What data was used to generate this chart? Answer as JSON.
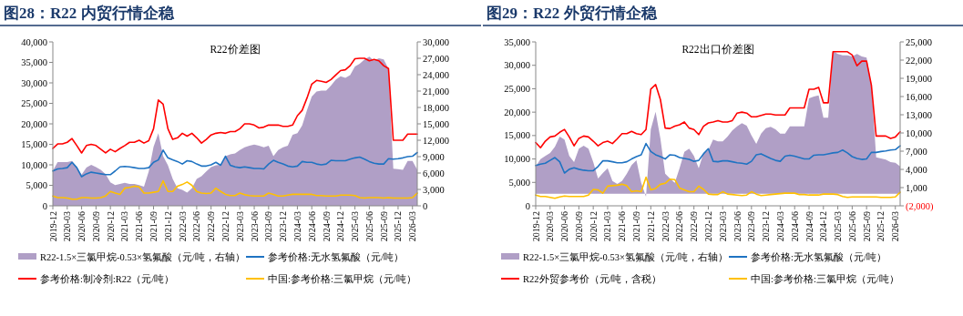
{
  "chart_data": [
    {
      "type": "line",
      "title": "图28：R22 内贸行情企稳",
      "subtitle": "R22价差图",
      "legend": "bottom",
      "xlim": [
        "2019-12",
        "2026-04"
      ],
      "xticks": [
        "2019-12",
        "2020-03",
        "2020-06",
        "2020-09",
        "2020-12",
        "2021-03",
        "2021-06",
        "2021-09",
        "2021-12",
        "2022-03",
        "2022-06",
        "2022-09",
        "2022-12",
        "2023-03",
        "2023-06",
        "2023-09",
        "2023-12",
        "2024-03",
        "2024-06",
        "2024-09",
        "2024-12",
        "2025-03",
        "2025-06",
        "2025-09",
        "2025-12",
        "2026-03"
      ],
      "ylim": [
        0,
        40000
      ],
      "yticks": [
        0,
        {
          "value": 5000,
          "label": "5,000"
        },
        {
          "value": 10000,
          "label": "10,000"
        },
        {
          "value": 15000,
          "label": "15,000"
        },
        {
          "value": 20000,
          "label": "20,000"
        },
        {
          "value": 25000,
          "label": "25,000"
        },
        {
          "value": 30000,
          "label": "30,000"
        },
        {
          "value": 35000,
          "label": "35,000"
        },
        {
          "value": 40000,
          "label": "40,000"
        }
      ],
      "y2lim": [
        0,
        30000
      ],
      "y2ticks": [
        0,
        {
          "value": 3000,
          "label": "3,000"
        },
        {
          "value": 6000,
          "label": "6,000"
        },
        {
          "value": 9000,
          "label": "9,000"
        },
        {
          "value": 12000,
          "label": "12,000"
        },
        {
          "value": 15000,
          "label": "15,000"
        },
        {
          "value": 18000,
          "label": "18,000"
        },
        {
          "value": 21000,
          "label": "21,000"
        },
        {
          "value": 24000,
          "label": "24,000"
        },
        {
          "value": 27000,
          "label": "27,000"
        },
        {
          "value": 30000,
          "label": "30,000"
        }
      ],
      "x": [
        "2019-12",
        "2020-01",
        "2020-02",
        "2020-03",
        "2020-04",
        "2020-05",
        "2020-06",
        "2020-07",
        "2020-08",
        "2020-09",
        "2020-10",
        "2020-11",
        "2020-12",
        "2021-01",
        "2021-02",
        "2021-03",
        "2021-04",
        "2021-05",
        "2021-06",
        "2021-07",
        "2021-08",
        "2021-09",
        "2021-10",
        "2021-11",
        "2021-12",
        "2022-01",
        "2022-02",
        "2022-03",
        "2022-04",
        "2022-05",
        "2022-06",
        "2022-07",
        "2022-08",
        "2022-09",
        "2022-10",
        "2022-11",
        "2022-12",
        "2023-01",
        "2023-02",
        "2023-03",
        "2023-04",
        "2023-05",
        "2023-06",
        "2023-07",
        "2023-08",
        "2023-09",
        "2023-10",
        "2023-11",
        "2023-12",
        "2024-01",
        "2024-02",
        "2024-03",
        "2024-04",
        "2024-05",
        "2024-06",
        "2024-07",
        "2024-08",
        "2024-09",
        "2024-10",
        "2024-11",
        "2024-12",
        "2025-01",
        "2025-02",
        "2025-03",
        "2025-04",
        "2025-05",
        "2025-06",
        "2025-07",
        "2025-08",
        "2025-09",
        "2025-10",
        "2025-11",
        "2025-12",
        "2026-01",
        "2026-02",
        "2026-03",
        "2026-04"
      ],
      "series": [
        {
          "name": "R22-1.5×三氯甲烷-0.53×氢氟酸（元/吨，右轴）",
          "type": "area",
          "axis": "y2",
          "color": "#b09fc6",
          "values": [
            6400,
            8000,
            8000,
            8000,
            8200,
            7100,
            5700,
            7000,
            7500,
            7100,
            6600,
            5800,
            4300,
            3800,
            4000,
            4200,
            4000,
            4000,
            3800,
            3500,
            6300,
            10800,
            13300,
            9100,
            7400,
            4900,
            3200,
            2900,
            2400,
            3200,
            4900,
            5400,
            6300,
            7100,
            7400,
            7500,
            9100,
            9400,
            9600,
            10200,
            10700,
            11000,
            11200,
            11000,
            10700,
            11000,
            9100,
            10200,
            10700,
            11000,
            13000,
            13300,
            14700,
            17500,
            20000,
            20900,
            21100,
            21100,
            22000,
            23100,
            23700,
            23400,
            23900,
            25500,
            26000,
            26800,
            27300,
            26600,
            27000,
            26800,
            25100,
            6800,
            6700,
            6600,
            8200,
            8200,
            6600
          ]
        },
        {
          "name": "参考价格:无水氢氟酸（元/吨）",
          "type": "line",
          "color": "#1f73c2",
          "values": [
            8500,
            9000,
            9100,
            9300,
            10600,
            9300,
            7100,
            7800,
            8200,
            8000,
            7800,
            7600,
            7600,
            8500,
            9500,
            9600,
            9500,
            9300,
            9100,
            9100,
            9300,
            10600,
            11200,
            13600,
            11700,
            11200,
            10800,
            10200,
            11000,
            10800,
            10200,
            9700,
            9700,
            10000,
            10600,
            9900,
            12100,
            9900,
            9500,
            9300,
            9500,
            9300,
            9100,
            9100,
            9000,
            10200,
            11100,
            10600,
            10200,
            9700,
            9500,
            9700,
            10800,
            10600,
            10600,
            10200,
            10000,
            10200,
            11100,
            11000,
            11000,
            11000,
            11400,
            11700,
            11900,
            11400,
            10800,
            10400,
            10200,
            10200,
            11500,
            11400,
            11500,
            11700,
            12000,
            12100,
            13000
          ]
        },
        {
          "name": "参考价格:制冷剂:R22（元/吨）",
          "type": "line",
          "color": "#ff0000",
          "values": [
            14000,
            15100,
            15100,
            15500,
            16400,
            14700,
            12900,
            14700,
            15000,
            14700,
            13800,
            12900,
            13800,
            13200,
            14000,
            14700,
            15500,
            15500,
            16000,
            15300,
            15900,
            18800,
            25800,
            24800,
            18800,
            16200,
            16600,
            17700,
            17000,
            17700,
            16600,
            15300,
            16200,
            17300,
            17700,
            17900,
            17700,
            18100,
            18100,
            18800,
            20000,
            20000,
            19700,
            19000,
            19200,
            19700,
            19700,
            19700,
            19400,
            19400,
            19700,
            22000,
            23300,
            26300,
            29700,
            30600,
            30400,
            30100,
            30800,
            31900,
            33000,
            33200,
            34200,
            35900,
            36000,
            36000,
            35400,
            35700,
            35400,
            34200,
            33500,
            16000,
            16000,
            16000,
            17500,
            17500,
            17500
          ]
        },
        {
          "name": "中国:参考价格:三氯甲烷（元/吨）",
          "type": "line",
          "color": "#ffc000",
          "values": [
            2400,
            2000,
            2000,
            1900,
            1600,
            1600,
            2000,
            2000,
            1900,
            1900,
            2000,
            2400,
            3500,
            3100,
            2800,
            4300,
            4500,
            4800,
            4600,
            3100,
            3100,
            3300,
            3500,
            6100,
            3500,
            3500,
            4800,
            5200,
            5800,
            5000,
            3500,
            3100,
            3000,
            3100,
            4300,
            3500,
            2800,
            2500,
            2500,
            3100,
            2700,
            2500,
            2400,
            2400,
            2400,
            3100,
            2800,
            2400,
            2400,
            2600,
            2800,
            2800,
            2800,
            2800,
            2800,
            2500,
            2500,
            2400,
            2400,
            2400,
            2600,
            2600,
            2600,
            2500,
            2000,
            1900,
            2000,
            2000,
            2000,
            1900,
            2000,
            1900,
            1900,
            1900,
            1900,
            2000,
            3100
          ]
        }
      ]
    },
    {
      "type": "line",
      "title": "图29：R22 外贸行情企稳",
      "subtitle": "R22出口价差图",
      "legend": "bottom",
      "xlim": [
        "2019-12",
        "2026-04"
      ],
      "xticks": [
        "2019-12",
        "2020-03",
        "2020-06",
        "2020-09",
        "2020-12",
        "2021-03",
        "2021-06",
        "2021-09",
        "2021-12",
        "2022-03",
        "2022-06",
        "2022-09",
        "2022-12",
        "2023-03",
        "2023-06",
        "2023-09",
        "2023-12",
        "2024-03",
        "2024-06",
        "2024-09",
        "2024-12",
        "2025-03",
        "2025-06",
        "2025-09",
        "2025-12",
        "2026-03"
      ],
      "ylim": [
        0,
        35000
      ],
      "yticks": [
        0,
        {
          "value": 5000,
          "label": "5,000"
        },
        {
          "value": 10000,
          "label": "10,000"
        },
        {
          "value": 15000,
          "label": "15,000"
        },
        {
          "value": 20000,
          "label": "20,000"
        },
        {
          "value": 25000,
          "label": "25,000"
        },
        {
          "value": 30000,
          "label": "30,000"
        },
        {
          "value": 35000,
          "label": "35,000"
        }
      ],
      "y2lim": [
        -2000,
        25000
      ],
      "y2ticks": [
        {
          "value": -2000,
          "label": "(2,000)"
        },
        {
          "value": 1000,
          "label": "1,000"
        },
        {
          "value": 4000,
          "label": "4,000"
        },
        {
          "value": 7000,
          "label": "7,000"
        },
        {
          "value": 10000,
          "label": "10,000"
        },
        {
          "value": 13000,
          "label": "13,000"
        },
        {
          "value": 16000,
          "label": "16,000"
        },
        {
          "value": 19000,
          "label": "19,000"
        },
        {
          "value": 22000,
          "label": "22,000"
        },
        {
          "value": 25000,
          "label": "25,000"
        }
      ],
      "x": [
        "2019-12",
        "2020-01",
        "2020-02",
        "2020-03",
        "2020-04",
        "2020-05",
        "2020-06",
        "2020-07",
        "2020-08",
        "2020-09",
        "2020-10",
        "2020-11",
        "2020-12",
        "2021-01",
        "2021-02",
        "2021-03",
        "2021-04",
        "2021-05",
        "2021-06",
        "2021-07",
        "2021-08",
        "2021-09",
        "2021-10",
        "2021-11",
        "2021-12",
        "2022-01",
        "2022-02",
        "2022-03",
        "2022-04",
        "2022-05",
        "2022-06",
        "2022-07",
        "2022-08",
        "2022-09",
        "2022-10",
        "2022-11",
        "2022-12",
        "2023-01",
        "2023-02",
        "2023-03",
        "2023-04",
        "2023-05",
        "2023-06",
        "2023-07",
        "2023-08",
        "2023-09",
        "2023-10",
        "2023-11",
        "2023-12",
        "2024-01",
        "2024-02",
        "2024-03",
        "2024-04",
        "2024-05",
        "2024-06",
        "2024-07",
        "2024-08",
        "2024-09",
        "2024-10",
        "2024-11",
        "2024-12",
        "2025-01",
        "2025-02",
        "2025-03",
        "2025-04",
        "2025-05",
        "2025-06",
        "2025-07",
        "2025-08",
        "2025-09",
        "2025-10",
        "2025-11",
        "2025-12",
        "2026-01",
        "2026-02",
        "2026-03",
        "2026-04"
      ],
      "series": [
        {
          "name": "R22-1.5×三氯甲烷-0.53×氢氟酸（元/吨，右轴）",
          "type": "area",
          "axis": "y2",
          "color": "#b09fc6",
          "values": [
            4500,
            5700,
            6200,
            6700,
            7700,
            9400,
            8900,
            6200,
            5200,
            7400,
            7900,
            7400,
            5200,
            2500,
            3400,
            4200,
            2100,
            1600,
            2100,
            3300,
            4700,
            5500,
            1800,
            -500,
            10600,
            13500,
            9100,
            3300,
            2500,
            1800,
            4200,
            6900,
            7400,
            6200,
            4200,
            6700,
            7200,
            8900,
            8600,
            8600,
            9400,
            10400,
            11100,
            11600,
            11200,
            9600,
            8200,
            9900,
            10800,
            11000,
            10600,
            9900,
            9900,
            11100,
            11100,
            11100,
            11100,
            15700,
            16000,
            16200,
            12500,
            12500,
            23500,
            23000,
            22800,
            22800,
            22600,
            23000,
            22600,
            22400,
            17900,
            6000,
            5800,
            5600,
            5200,
            5100,
            4500
          ]
        },
        {
          "name": "参考价格:无水氢氟酸（元/吨）",
          "type": "line",
          "color": "#1f73c2",
          "values": [
            8600,
            8900,
            9100,
            9700,
            10300,
            9400,
            7000,
            7800,
            8100,
            7800,
            7600,
            7500,
            7500,
            8400,
            9600,
            9600,
            9400,
            9200,
            9200,
            9400,
            10000,
            10500,
            10900,
            13300,
            11600,
            10900,
            10500,
            10000,
            10900,
            10800,
            10300,
            10100,
            9900,
            9500,
            9700,
            11100,
            12200,
            9500,
            9400,
            9600,
            9600,
            9400,
            9200,
            9100,
            8900,
            9500,
            10900,
            11100,
            10600,
            10100,
            9700,
            9500,
            10600,
            10800,
            10600,
            10300,
            10000,
            10000,
            10800,
            10900,
            10900,
            11100,
            11300,
            11400,
            11900,
            11300,
            10500,
            10100,
            9900,
            10000,
            11400,
            11400,
            11600,
            11700,
            11900,
            12000,
            12800
          ]
        },
        {
          "name": "R22外贸参考价（元/吨，含税）",
          "type": "line",
          "color": "#ff0000",
          "values": [
            13500,
            12400,
            13800,
            14700,
            14900,
            15700,
            16300,
            14700,
            12800,
            14400,
            14900,
            14700,
            13800,
            12800,
            13500,
            13800,
            13300,
            14300,
            15400,
            15400,
            15900,
            15400,
            15200,
            16300,
            24900,
            25900,
            22700,
            16600,
            16500,
            17000,
            17300,
            17900,
            16600,
            16300,
            15200,
            17000,
            17700,
            17900,
            18200,
            17900,
            17900,
            18200,
            19800,
            20000,
            19800,
            19000,
            19000,
            19300,
            19600,
            19600,
            19400,
            19400,
            19400,
            20900,
            20900,
            20900,
            20900,
            24900,
            24900,
            25300,
            22000,
            22000,
            32900,
            32900,
            32900,
            32900,
            32200,
            29900,
            30900,
            30900,
            25800,
            14900,
            14900,
            14900,
            14400,
            14700,
            15800
          ]
        },
        {
          "name": "中国:参考价格:三氯甲烷（元/吨）",
          "type": "line",
          "color": "#ffc000",
          "values": [
            2300,
            2000,
            2000,
            1800,
            1600,
            1900,
            2100,
            2000,
            2000,
            2000,
            2000,
            2300,
            3500,
            3400,
            2700,
            4200,
            4300,
            4400,
            4600,
            4300,
            3000,
            3200,
            3000,
            6100,
            3400,
            3700,
            4600,
            4800,
            5700,
            5600,
            3800,
            3400,
            3000,
            3000,
            4200,
            3500,
            2500,
            2400,
            2400,
            3000,
            2500,
            2400,
            2300,
            2200,
            2300,
            3000,
            2500,
            2200,
            2300,
            2400,
            2500,
            2600,
            2700,
            2700,
            2700,
            2400,
            2400,
            2300,
            2300,
            2300,
            2500,
            2500,
            2500,
            2400,
            2000,
            1800,
            1900,
            1900,
            1900,
            1900,
            1900,
            1900,
            1800,
            1800,
            1800,
            1900,
            2900
          ]
        }
      ]
    }
  ]
}
